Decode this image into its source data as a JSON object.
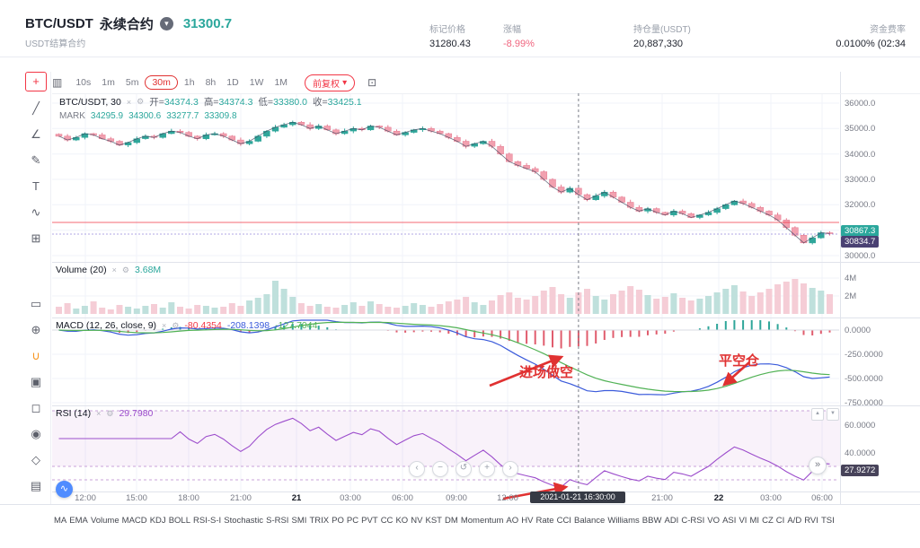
{
  "header": {
    "pair": "BTC/USDT",
    "contract_type": "永续合约",
    "price": "31300.7",
    "subtitle": "USDT结算合约",
    "mark_price_label": "标记价格",
    "mark_price": "31280.43",
    "change_label": "涨幅",
    "change": "-8.99%",
    "open_interest_label": "持仓量(USDT)",
    "open_interest": "20,887,330",
    "funding_label": "资金费率",
    "funding": "0.0100% (02:34"
  },
  "toolbar": {
    "timeframes": [
      "10s",
      "1m",
      "5m",
      "30m",
      "1h",
      "8h",
      "1D",
      "1W",
      "1M"
    ],
    "selected_timeframe": "30m",
    "adjust_label": "前复权",
    "chart_type_glyph": "▥",
    "expand_glyph": "⊡"
  },
  "sidebar_tools": [
    {
      "name": "crosshair-tool",
      "glyph": "+",
      "active": true
    },
    {
      "name": "trend-line-tool",
      "glyph": "╱"
    },
    {
      "name": "gann-fib-tool",
      "glyph": "∠"
    },
    {
      "name": "brush-tool",
      "glyph": "✎"
    },
    {
      "name": "text-tool",
      "glyph": "T"
    },
    {
      "name": "pattern-tool",
      "glyph": "∿"
    },
    {
      "name": "position-tool",
      "glyph": "⊞"
    },
    {
      "name": "ruler-tool",
      "glyph": "▭",
      "gap": true
    },
    {
      "name": "zoom-tool",
      "glyph": "⊕"
    },
    {
      "name": "magnet-tool",
      "glyph": "∪",
      "accent": "orange"
    },
    {
      "name": "drawing-mode-tool",
      "glyph": "▣"
    },
    {
      "name": "lock-drawings-tool",
      "glyph": "◻"
    },
    {
      "name": "hide-drawings-tool",
      "glyph": "◉"
    },
    {
      "name": "layers-tool",
      "glyph": "◇"
    },
    {
      "name": "remove-drawings-tool",
      "glyph": "▤"
    }
  ],
  "legend": {
    "symbol_row": {
      "title": "BTC/USDT, 30",
      "o_label": "开=",
      "o": "34374.3",
      "h_label": "高=",
      "h": "34374.3",
      "l_label": "低=",
      "l": "33380.0",
      "c_label": "收=",
      "c": "33425.1"
    },
    "mark_row": {
      "title": "MARK",
      "v1": "34295.9",
      "v2": "34300.6",
      "v3": "33277.7",
      "v4": "33309.8"
    },
    "volume_row": {
      "title": "Volume (20)",
      "value": "3.68M"
    },
    "macd_row": {
      "title": "MACD (12, 26, close, 9)",
      "hist": "-80.4354",
      "macd": "-208.1398",
      "signal": "-127.7044"
    },
    "rsi_row": {
      "title": "RSI (14)",
      "value": "29.7980"
    }
  },
  "annotations": {
    "entry": "进场做空",
    "exit": "平空仓"
  },
  "bottom_indicators": [
    "MA",
    "EMA",
    "Volume",
    "MACD",
    "KDJ",
    "BOLL",
    "RSI-S-I",
    "Stochastic",
    "S-RSI",
    "SMI",
    "TRIX",
    "PO",
    "PC",
    "PVT",
    "CC",
    "KO",
    "NV",
    "KST",
    "DM",
    "Momentum",
    "AO",
    "HV",
    "Rate",
    "CCI",
    "Balance",
    "Williams",
    "BBW",
    "ADI",
    "C-RSI",
    "VO",
    "ASI",
    "VI",
    "MI",
    "CZ",
    "CI",
    "A/D",
    "RVI",
    "TSI"
  ],
  "floating_controls": {
    "buttons": [
      {
        "name": "pan-left-button",
        "glyph": "‹"
      },
      {
        "name": "zoom-out-button",
        "glyph": "−"
      },
      {
        "name": "reset-view-button",
        "glyph": "↺"
      },
      {
        "name": "zoom-in-button",
        "glyph": "+"
      },
      {
        "name": "pan-right-button",
        "glyph": "›"
      }
    ],
    "collapse_glyph": "»",
    "realtime_glyph": "∿"
  },
  "colors": {
    "up": "#2fa69a",
    "down_fill": "#f2a0af",
    "down_stroke": "#e5798f",
    "vol_up": "#bfe0dc",
    "vol_down": "#f5cdd6",
    "macd_line": "#3b5bdb",
    "signal_line": "#51b255",
    "hist_neg": "#e05c6d",
    "hist_pos": "#2fa69a",
    "rsi_line": "#9c4dcc",
    "accent_red": "#f23645",
    "annotation_red": "#e03131",
    "tag_teal": "#2ba79c",
    "tag_purple": "#4a4173",
    "tag_dark": "#47435a"
  },
  "chart_data": {
    "type": "candlestick",
    "symbol": "BTC/USDT",
    "interval": "30m",
    "close": [
      34700,
      34550,
      34650,
      34800,
      34750,
      34600,
      34500,
      34350,
      34450,
      34600,
      34700,
      34650,
      34800,
      34900,
      34850,
      34700,
      34600,
      34750,
      34800,
      34700,
      34550,
      34400,
      34500,
      34700,
      34900,
      35050,
      35150,
      35250,
      35150,
      35000,
      35100,
      34950,
      34800,
      34900,
      35000,
      34950,
      35100,
      35050,
      34900,
      34750,
      34850,
      34950,
      35000,
      34900,
      34800,
      34650,
      34500,
      34300,
      34400,
      34500,
      34300,
      34000,
      33700,
      33550,
      33425,
      33300,
      33000,
      32700,
      32500,
      32650,
      32400,
      32200,
      32350,
      32500,
      32300,
      32100,
      31900,
      31750,
      31850,
      31700,
      31600,
      31750,
      31650,
      31500,
      31600,
      31700,
      31850,
      32000,
      32150,
      32050,
      31900,
      31750,
      31600,
      31400,
      31100,
      30800,
      30500,
      30700,
      30900,
      30867
    ],
    "volume_m": [
      0.8,
      1.2,
      0.6,
      0.9,
      1.4,
      0.7,
      0.5,
      1.0,
      0.8,
      0.6,
      0.9,
      1.1,
      0.7,
      1.3,
      0.8,
      0.6,
      1.0,
      0.9,
      0.7,
      0.8,
      1.2,
      0.9,
      1.5,
      1.8,
      2.2,
      3.7,
      2.8,
      1.9,
      1.2,
      0.9,
      1.1,
      0.8,
      0.7,
      1.0,
      1.3,
      0.9,
      1.4,
      1.1,
      0.8,
      0.7,
      0.9,
      1.2,
      1.0,
      0.8,
      1.1,
      1.4,
      1.6,
      1.9,
      1.3,
      1.0,
      1.5,
      2.1,
      2.4,
      1.8,
      1.6,
      2.0,
      2.6,
      3.0,
      2.2,
      1.8,
      2.4,
      2.8,
      2.0,
      1.6,
      2.2,
      2.6,
      3.1,
      2.7,
      2.1,
      1.7,
      1.9,
      2.3,
      1.8,
      1.5,
      1.7,
      2.0,
      2.4,
      2.8,
      3.2,
      2.5,
      2.0,
      2.4,
      2.8,
      3.3,
      3.6,
      3.9,
      3.4,
      2.9,
      2.6,
      2.2
    ],
    "crosshair": {
      "index": 60,
      "time": "2021-01-21 16:30:00"
    },
    "x_labels": [
      {
        "label": "12:00"
      },
      {
        "label": "15:00"
      },
      {
        "label": "18:00"
      },
      {
        "label": "21:00"
      },
      {
        "label": "21",
        "bold": true
      },
      {
        "label": "03:00"
      },
      {
        "label": "06:00"
      },
      {
        "label": "09:00"
      },
      {
        "label": "12:00"
      },
      {
        "label": "21:00"
      },
      {
        "label": "22",
        "bold": true
      },
      {
        "label": "03:00"
      },
      {
        "label": "06:00"
      }
    ],
    "price_axis": {
      "ticks": [
        36000,
        35000,
        34000,
        33000,
        32000,
        31000,
        30000
      ],
      "last": 30867.3,
      "mark": 30834.7
    },
    "volume_axis": {
      "ticks": [
        "4M",
        "2M"
      ],
      "current": "3.68M"
    },
    "macd": {
      "params": "12, 26, close, 9",
      "ticks": [
        0,
        -250,
        -500,
        -750
      ],
      "hist": -80.4354,
      "macd_val": -208.1398,
      "signal_val": -127.7044
    },
    "rsi": {
      "period": 14,
      "ticks": [
        60,
        40
      ],
      "current": 29.798,
      "tag": 27.9272
    }
  }
}
